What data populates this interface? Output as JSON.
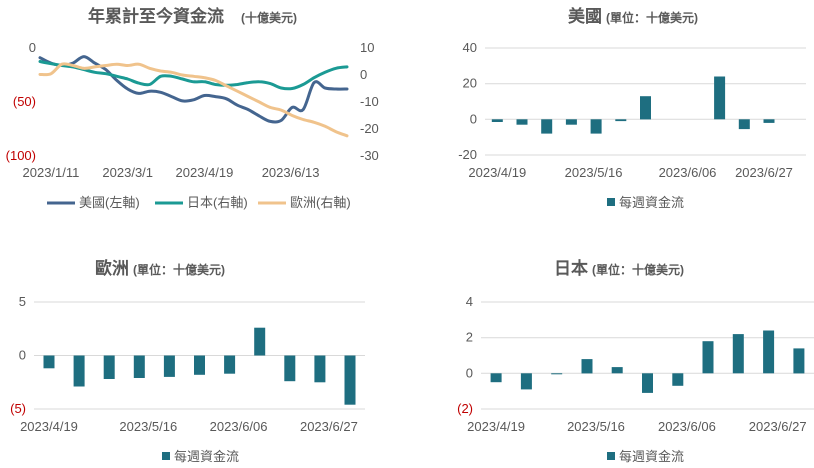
{
  "chart_data": [
    {
      "type": "line",
      "title": "年累計至今資金流",
      "subtitle": "(十億美元)",
      "x_tick_labels": [
        "2023/1/11",
        "2023/3/1",
        "2023/4/19",
        "2023/6/13"
      ],
      "y_left": {
        "ticks": [
          "0",
          "(50)",
          "(100)"
        ],
        "ylim": [
          -100,
          0
        ]
      },
      "y_right": {
        "ticks": [
          "10",
          "0",
          "-10",
          "-20",
          "-30"
        ],
        "ylim": [
          -30,
          10
        ]
      },
      "x_range": [
        "2023/1/04",
        "2023/7/19"
      ],
      "legend_position": "bottom",
      "series": [
        {
          "name": "美國(左軸)",
          "axis": "left",
          "color": "#44658f",
          "points": [
            [
              "2023/1/04",
              -9
            ],
            [
              "2023/1/11",
              -14
            ],
            [
              "2023/1/18",
              -16
            ],
            [
              "2023/1/25",
              -14
            ],
            [
              "2023/2/01",
              -8
            ],
            [
              "2023/2/08",
              -14
            ],
            [
              "2023/2/15",
              -20
            ],
            [
              "2023/2/22",
              -30
            ],
            [
              "2023/3/01",
              -38
            ],
            [
              "2023/3/08",
              -42
            ],
            [
              "2023/3/15",
              -40
            ],
            [
              "2023/3/22",
              -41
            ],
            [
              "2023/3/29",
              -45
            ],
            [
              "2023/4/05",
              -49
            ],
            [
              "2023/4/12",
              -48
            ],
            [
              "2023/4/19",
              -44
            ],
            [
              "2023/4/26",
              -45
            ],
            [
              "2023/5/03",
              -47
            ],
            [
              "2023/5/10",
              -53
            ],
            [
              "2023/5/17",
              -57
            ],
            [
              "2023/5/24",
              -63
            ],
            [
              "2023/5/31",
              -68
            ],
            [
              "2023/6/07",
              -67
            ],
            [
              "2023/6/14",
              -55
            ],
            [
              "2023/6/21",
              -57
            ],
            [
              "2023/6/28",
              -32
            ],
            [
              "2023/7/05",
              -37
            ],
            [
              "2023/7/12",
              -38
            ],
            [
              "2023/7/19",
              -38
            ]
          ]
        },
        {
          "name": "日本(右軸)",
          "axis": "right",
          "color": "#1b9a94",
          "points": [
            [
              "2023/1/04",
              5.0
            ],
            [
              "2023/1/11",
              4.2
            ],
            [
              "2023/1/18",
              3.5
            ],
            [
              "2023/1/25",
              3.0
            ],
            [
              "2023/2/01",
              2.0
            ],
            [
              "2023/2/08",
              1.0
            ],
            [
              "2023/2/15",
              0.5
            ],
            [
              "2023/2/22",
              -0.5
            ],
            [
              "2023/3/01",
              -1.5
            ],
            [
              "2023/3/08",
              -3.0
            ],
            [
              "2023/3/15",
              -3.5
            ],
            [
              "2023/3/22",
              -0.5
            ],
            [
              "2023/3/29",
              -0.5
            ],
            [
              "2023/4/05",
              -1.5
            ],
            [
              "2023/4/12",
              -2.5
            ],
            [
              "2023/4/19",
              -2.5
            ],
            [
              "2023/4/26",
              -3.5
            ],
            [
              "2023/5/03",
              -3.8
            ],
            [
              "2023/5/10",
              -3.5
            ],
            [
              "2023/5/17",
              -2.8
            ],
            [
              "2023/5/24",
              -2.5
            ],
            [
              "2023/5/31",
              -3.2
            ],
            [
              "2023/6/07",
              -4.8
            ],
            [
              "2023/6/14",
              -5.0
            ],
            [
              "2023/6/21",
              -3.5
            ],
            [
              "2023/6/28",
              -1.0
            ],
            [
              "2023/7/05",
              1.0
            ],
            [
              "2023/7/12",
              2.5
            ],
            [
              "2023/7/19",
              3.0
            ]
          ]
        },
        {
          "name": "歐洲(右軸)",
          "axis": "right",
          "color": "#f0c38c",
          "points": [
            [
              "2023/1/04",
              0.2
            ],
            [
              "2023/1/11",
              0.5
            ],
            [
              "2023/1/18",
              4.0
            ],
            [
              "2023/1/25",
              3.5
            ],
            [
              "2023/2/01",
              2.5
            ],
            [
              "2023/2/08",
              3.0
            ],
            [
              "2023/2/15",
              3.5
            ],
            [
              "2023/2/22",
              4.0
            ],
            [
              "2023/3/01",
              3.5
            ],
            [
              "2023/3/08",
              4.0
            ],
            [
              "2023/3/15",
              2.5
            ],
            [
              "2023/3/22",
              1.5
            ],
            [
              "2023/3/29",
              1.0
            ],
            [
              "2023/4/05",
              0.0
            ],
            [
              "2023/4/12",
              -0.5
            ],
            [
              "2023/4/19",
              -1.0
            ],
            [
              "2023/4/26",
              -2.0
            ],
            [
              "2023/5/03",
              -4.0
            ],
            [
              "2023/5/10",
              -6.0
            ],
            [
              "2023/5/17",
              -8.0
            ],
            [
              "2023/5/24",
              -10.0
            ],
            [
              "2023/5/31",
              -12.0
            ],
            [
              "2023/6/07",
              -13.0
            ],
            [
              "2023/6/14",
              -15.0
            ],
            [
              "2023/6/21",
              -16.5
            ],
            [
              "2023/6/28",
              -17.5
            ],
            [
              "2023/7/05",
              -19.0
            ],
            [
              "2023/7/12",
              -21.0
            ],
            [
              "2023/7/19",
              -22.5
            ]
          ]
        }
      ]
    },
    {
      "type": "bar",
      "title": "美國",
      "subtitle": "(單位：十億美元)",
      "categories": [
        "2023/4/19",
        "2023/4/26",
        "2023/5/03",
        "2023/5/10",
        "2023/5/17",
        "2023/5/24",
        "2023/5/31",
        "2023/6/07",
        "2023/6/14",
        "2023/6/21",
        "2023/6/28",
        "2023/7/05",
        "2023/7/12"
      ],
      "x_tick_labels": [
        "2023/4/19",
        "2023/5/16",
        "2023/6/06",
        "2023/6/27"
      ],
      "y_ticks": [
        "40",
        "20",
        "0",
        "-20"
      ],
      "ylim": [
        -20,
        40
      ],
      "series": [
        {
          "name": "每週資金流",
          "color": "#1e6e80",
          "values": [
            -1.5,
            -3,
            -8,
            -3,
            -8,
            -1,
            13,
            0,
            0,
            24,
            -5.5,
            -2,
            0
          ]
        }
      ]
    },
    {
      "type": "bar",
      "title": "歐洲",
      "subtitle": "(單位：十億美元)",
      "categories": [
        "2023/4/19",
        "2023/4/26",
        "2023/5/03",
        "2023/5/10",
        "2023/5/17",
        "2023/5/24",
        "2023/5/31",
        "2023/6/07",
        "2023/6/14",
        "2023/6/21",
        "2023/6/28"
      ],
      "x_tick_labels": [
        "2023/4/19",
        "2023/5/16",
        "2023/6/06",
        "2023/6/27"
      ],
      "y_ticks": [
        "5",
        "0",
        "(5)"
      ],
      "ylim": [
        -5,
        5
      ],
      "series": [
        {
          "name": "每週資金流",
          "color": "#1e6e80",
          "values": [
            -1.2,
            -2.9,
            -2.2,
            -2.1,
            -2.0,
            -1.8,
            -1.7,
            2.6,
            -2.4,
            -2.5,
            -4.6
          ]
        }
      ]
    },
    {
      "type": "bar",
      "title": "日本",
      "subtitle": "(單位：十億美元)",
      "categories": [
        "2023/4/19",
        "2023/4/26",
        "2023/5/03",
        "2023/5/10",
        "2023/5/17",
        "2023/5/24",
        "2023/5/31",
        "2023/6/07",
        "2023/6/14",
        "2023/6/21",
        "2023/6/28"
      ],
      "x_tick_labels": [
        "2023/4/19",
        "2023/5/16",
        "2023/6/06",
        "2023/6/27"
      ],
      "y_ticks": [
        "4",
        "2",
        "0",
        "(2)"
      ],
      "ylim": [
        -2,
        4
      ],
      "series": [
        {
          "name": "每週資金流",
          "color": "#1e6e80",
          "values": [
            -0.5,
            -0.9,
            -0.05,
            0.8,
            0.35,
            -1.1,
            -0.7,
            1.8,
            2.2,
            2.4,
            1.4
          ]
        }
      ]
    }
  ]
}
